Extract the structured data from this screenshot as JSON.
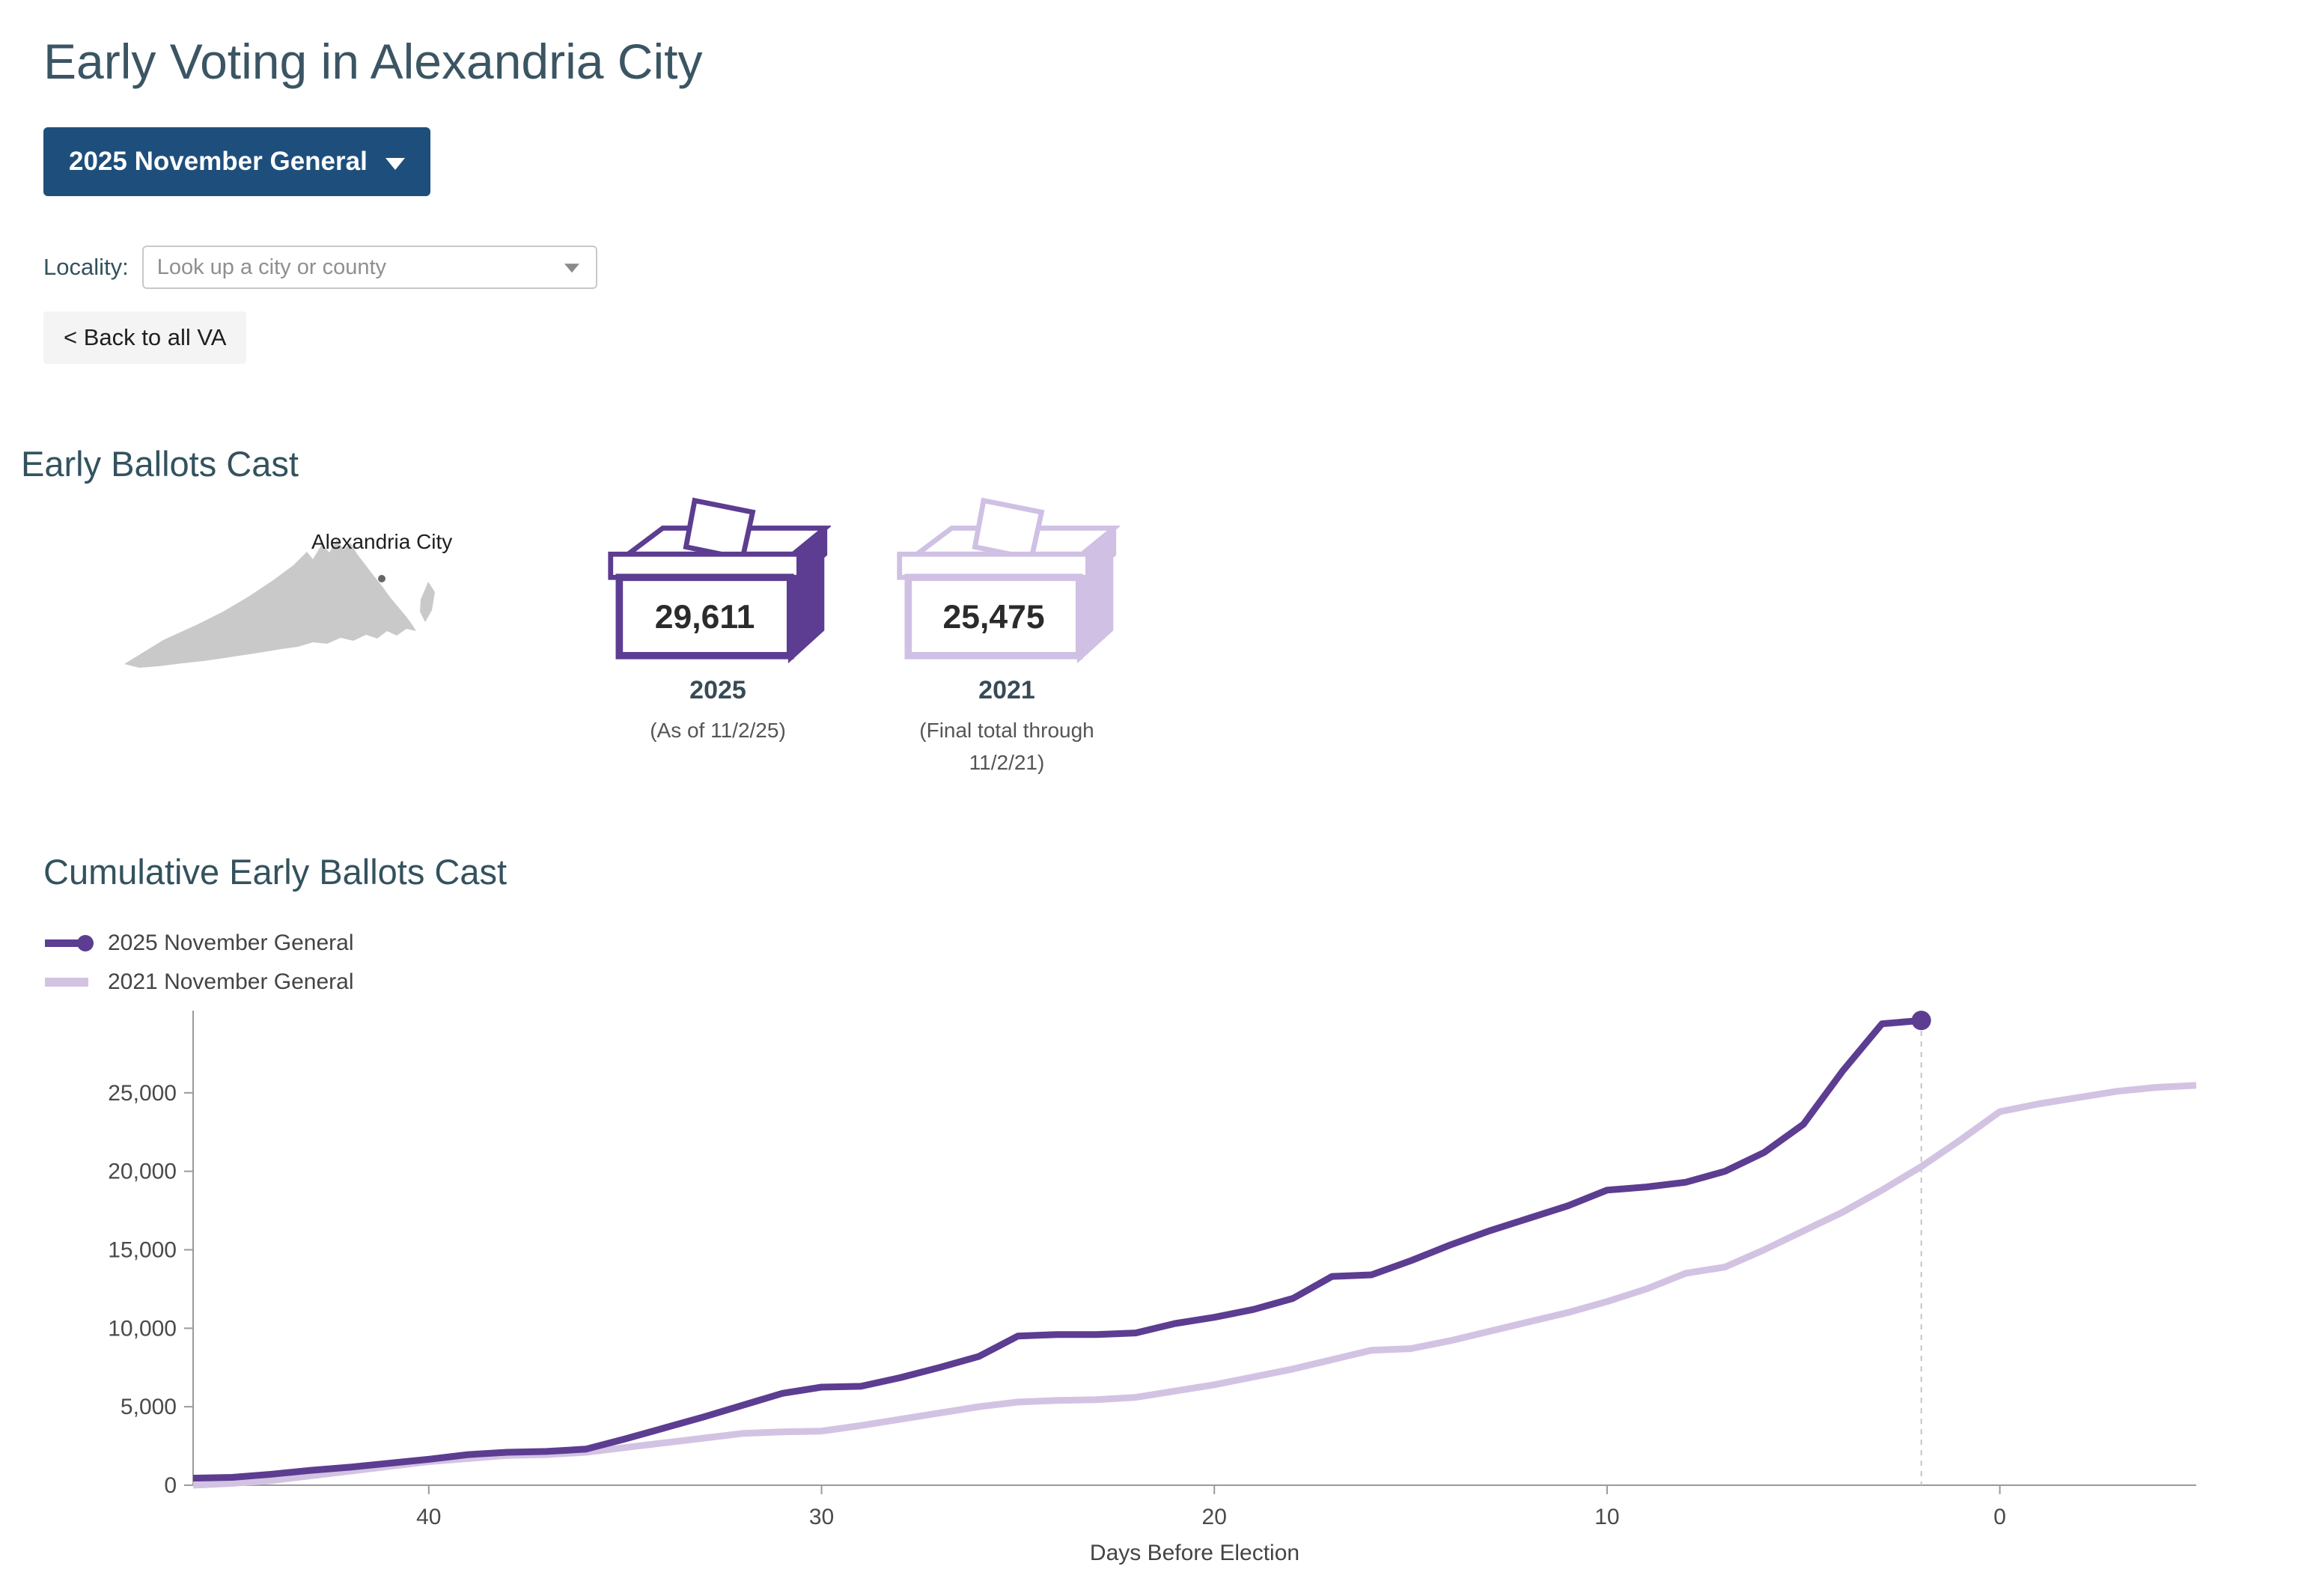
{
  "page": {
    "title": "Early Voting in Alexandria City"
  },
  "controls": {
    "election_dropdown_label": "2025 November General",
    "locality_label": "Locality:",
    "locality_placeholder": "Look up a city or county",
    "back_button_label": "< Back to all VA"
  },
  "early_ballots": {
    "heading": "Early Ballots Cast",
    "map_label": "Alexandria City",
    "boxes": [
      {
        "value": "29,611",
        "year": "2025",
        "caption": "(As of 11/2/25)",
        "color": "#5c3d91"
      },
      {
        "value": "25,475",
        "year": "2021",
        "caption": "(Final total through 11/2/21)",
        "color": "#cfc0e4"
      }
    ]
  },
  "chart": {
    "heading": "Cumulative Early Ballots Cast",
    "legend": [
      {
        "label": "2025 November General",
        "color": "#5c3d91",
        "dot": true
      },
      {
        "label": "2021 November General",
        "color": "#d3c3e3",
        "dot": false
      }
    ]
  },
  "chart_data": {
    "type": "line",
    "title": "Cumulative Early Ballots Cast",
    "xlabel": "Days Before Election",
    "ylabel": "",
    "x_axis_reversed": true,
    "xlim": [
      46,
      -5
    ],
    "ylim": [
      0,
      30000
    ],
    "yticks": [
      0,
      5000,
      10000,
      15000,
      20000,
      25000
    ],
    "xticks": [
      40,
      30,
      20,
      10,
      0
    ],
    "legend_position": "top-left",
    "grid": false,
    "annotations": {
      "dashed_vline_at_day": 2
    },
    "series": [
      {
        "name": "2025 November General",
        "color": "#5c3d91",
        "end_dot": true,
        "days": [
          46,
          45,
          44,
          43,
          42,
          41,
          40,
          39,
          38,
          37,
          36,
          35,
          34,
          33,
          32,
          31,
          30,
          29,
          28,
          27,
          26,
          25,
          24,
          23,
          22,
          21,
          20,
          19,
          18,
          17,
          16,
          15,
          14,
          13,
          12,
          11,
          10,
          9,
          8,
          7,
          6,
          5,
          4,
          3,
          2
        ],
        "values": [
          450,
          500,
          700,
          950,
          1150,
          1400,
          1650,
          1950,
          2100,
          2150,
          2300,
          2950,
          3650,
          4350,
          5100,
          5850,
          6250,
          6300,
          6850,
          7500,
          8200,
          9500,
          9600,
          9600,
          9700,
          10300,
          10700,
          11200,
          11900,
          13300,
          13400,
          14300,
          15300,
          16200,
          17000,
          17800,
          18800,
          19000,
          19300,
          20000,
          21200,
          23000,
          26400,
          29400,
          29611
        ]
      },
      {
        "name": "2021 November General",
        "color": "#d3c3e3",
        "end_dot": false,
        "days": [
          46,
          45,
          44,
          43,
          42,
          41,
          40,
          39,
          38,
          37,
          36,
          35,
          34,
          33,
          32,
          31,
          30,
          29,
          28,
          27,
          26,
          25,
          24,
          23,
          22,
          21,
          20,
          19,
          18,
          17,
          16,
          15,
          14,
          13,
          12,
          11,
          10,
          9,
          8,
          7,
          6,
          5,
          4,
          3,
          2,
          1,
          0,
          -1,
          -2,
          -3,
          -4,
          -5
        ],
        "values": [
          0,
          120,
          300,
          600,
          900,
          1200,
          1500,
          1700,
          1900,
          1950,
          2100,
          2400,
          2700,
          3000,
          3300,
          3400,
          3450,
          3800,
          4200,
          4600,
          5000,
          5300,
          5400,
          5450,
          5600,
          6000,
          6400,
          6900,
          7400,
          8000,
          8600,
          8700,
          9200,
          9800,
          10400,
          11000,
          11700,
          12500,
          13500,
          13900,
          15000,
          16200,
          17400,
          18800,
          20300,
          22000,
          23800,
          24300,
          24700,
          25100,
          25350,
          25475
        ]
      }
    ]
  }
}
